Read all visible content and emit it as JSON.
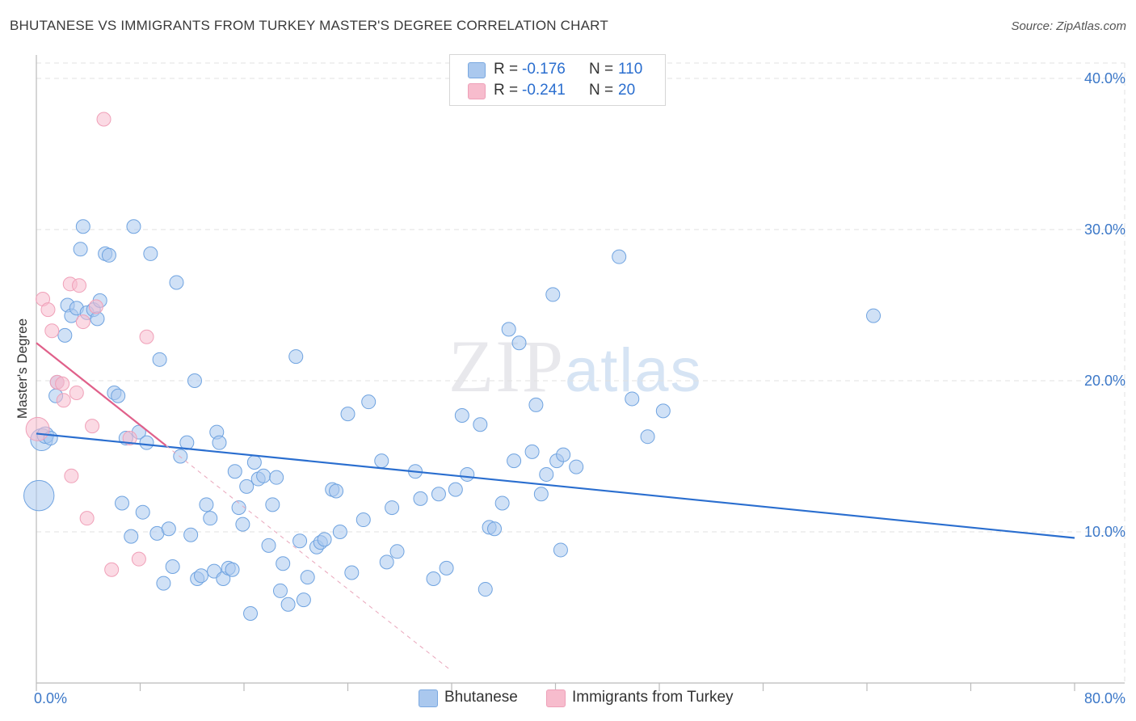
{
  "title": "BHUTANESE VS IMMIGRANTS FROM TURKEY MASTER'S DEGREE CORRELATION CHART",
  "source": "Source: ZipAtlas.com",
  "watermark": {
    "zip": "ZIP",
    "atlas": "atlas"
  },
  "legend": {
    "rows": [
      {
        "r_label": "R =",
        "r_value": "-0.176",
        "n_label": "N =",
        "n_value": "110",
        "color": "#aac8ee"
      },
      {
        "r_label": "R =",
        "r_value": "-0.241",
        "n_label": "N =",
        "n_value": "20",
        "color": "#f7bccd"
      }
    ]
  },
  "bottom_legend": [
    {
      "label": "Bhutanese",
      "color": "#aac8ee"
    },
    {
      "label": "Immigrants from Turkey",
      "color": "#f7bccd"
    }
  ],
  "chart_data": {
    "type": "scatter",
    "title": "BHUTANESE VS IMMIGRANTS FROM TURKEY MASTER'S DEGREE CORRELATION CHART",
    "xlabel": "",
    "ylabel": "Master's Degree",
    "xlim": [
      0,
      80
    ],
    "ylim": [
      0,
      40
    ],
    "x_tick_labels": [
      "0.0%",
      "80.0%"
    ],
    "y_tick_labels": [
      "10.0%",
      "20.0%",
      "30.0%",
      "40.0%"
    ],
    "y_ticks": [
      10,
      20,
      30,
      40
    ],
    "grid": true,
    "series": [
      {
        "name": "Bhutanese",
        "color": "#6fa3e0",
        "fill": "#aac8ee",
        "trend": {
          "x": [
            0,
            80
          ],
          "y": [
            16.5,
            9.6
          ],
          "color": "#2a6ecf"
        },
        "points": [
          [
            0.2,
            12.4,
            2.2
          ],
          [
            0.4,
            16.1,
            1.6
          ],
          [
            0.7,
            16.4,
            1.2
          ],
          [
            1.1,
            16.2,
            1
          ],
          [
            1.5,
            19.0,
            1
          ],
          [
            1.6,
            19.9,
            1
          ],
          [
            2.2,
            23.0,
            1
          ],
          [
            2.4,
            25.0,
            1
          ],
          [
            2.7,
            24.3,
            1
          ],
          [
            3.1,
            24.8,
            1
          ],
          [
            3.4,
            28.7,
            1
          ],
          [
            3.6,
            30.2,
            1
          ],
          [
            3.9,
            24.5,
            1
          ],
          [
            4.4,
            24.7,
            1
          ],
          [
            4.7,
            24.1,
            1
          ],
          [
            4.9,
            25.3,
            1
          ],
          [
            5.3,
            28.4,
            1
          ],
          [
            5.6,
            28.3,
            1
          ],
          [
            6.0,
            19.2,
            1
          ],
          [
            6.3,
            19.0,
            1
          ],
          [
            6.6,
            11.9,
            1
          ],
          [
            6.9,
            16.2,
            1
          ],
          [
            7.3,
            9.7,
            1
          ],
          [
            7.5,
            30.2,
            1
          ],
          [
            7.9,
            16.6,
            1
          ],
          [
            8.2,
            11.3,
            1
          ],
          [
            8.5,
            15.9,
            1
          ],
          [
            8.8,
            28.4,
            1
          ],
          [
            9.3,
            9.9,
            1
          ],
          [
            9.5,
            21.4,
            1
          ],
          [
            9.8,
            6.6,
            1
          ],
          [
            10.2,
            10.2,
            1
          ],
          [
            10.5,
            7.7,
            1
          ],
          [
            10.8,
            26.5,
            1
          ],
          [
            11.1,
            15.0,
            1
          ],
          [
            11.6,
            15.9,
            1
          ],
          [
            11.9,
            9.8,
            1
          ],
          [
            12.2,
            20.0,
            1
          ],
          [
            12.4,
            6.9,
            1
          ],
          [
            12.7,
            7.1,
            1
          ],
          [
            13.1,
            11.8,
            1
          ],
          [
            13.4,
            10.9,
            1
          ],
          [
            13.7,
            7.4,
            1
          ],
          [
            13.9,
            16.6,
            1
          ],
          [
            14.1,
            15.9,
            1
          ],
          [
            14.4,
            6.9,
            1
          ],
          [
            14.8,
            7.6,
            1
          ],
          [
            15.1,
            7.5,
            1
          ],
          [
            15.3,
            14.0,
            1
          ],
          [
            15.6,
            11.6,
            1
          ],
          [
            15.9,
            10.5,
            1
          ],
          [
            16.2,
            13.0,
            1
          ],
          [
            16.5,
            4.6,
            1
          ],
          [
            16.8,
            14.6,
            1
          ],
          [
            17.1,
            13.5,
            1
          ],
          [
            17.5,
            13.7,
            1
          ],
          [
            17.9,
            9.1,
            1
          ],
          [
            18.2,
            11.8,
            1
          ],
          [
            18.5,
            13.6,
            1
          ],
          [
            18.8,
            6.1,
            1
          ],
          [
            19.0,
            7.9,
            1
          ],
          [
            19.4,
            5.2,
            1
          ],
          [
            20.0,
            21.6,
            1
          ],
          [
            20.3,
            9.4,
            1
          ],
          [
            20.6,
            5.5,
            1
          ],
          [
            20.9,
            7.0,
            1
          ],
          [
            21.6,
            9.0,
            1
          ],
          [
            21.9,
            9.3,
            1
          ],
          [
            22.2,
            9.5,
            1
          ],
          [
            22.8,
            12.8,
            1
          ],
          [
            23.1,
            12.7,
            1
          ],
          [
            23.4,
            10.0,
            1
          ],
          [
            24.0,
            17.8,
            1
          ],
          [
            24.3,
            7.3,
            1
          ],
          [
            25.2,
            10.8,
            1
          ],
          [
            25.6,
            18.6,
            1
          ],
          [
            26.6,
            14.7,
            1
          ],
          [
            27.0,
            8.0,
            1
          ],
          [
            27.4,
            11.6,
            1
          ],
          [
            27.8,
            8.7,
            1
          ],
          [
            29.2,
            14.0,
            1
          ],
          [
            29.6,
            12.2,
            1
          ],
          [
            30.6,
            6.9,
            1
          ],
          [
            31.0,
            12.5,
            1
          ],
          [
            31.6,
            7.6,
            1
          ],
          [
            32.3,
            12.8,
            1
          ],
          [
            32.8,
            17.7,
            1
          ],
          [
            33.2,
            13.8,
            1
          ],
          [
            34.2,
            17.1,
            1
          ],
          [
            34.6,
            6.2,
            1
          ],
          [
            34.9,
            10.3,
            1
          ],
          [
            35.3,
            10.2,
            1
          ],
          [
            35.9,
            11.9,
            1
          ],
          [
            36.4,
            23.4,
            1
          ],
          [
            36.8,
            14.7,
            1
          ],
          [
            37.2,
            22.5,
            1
          ],
          [
            38.2,
            15.3,
            1
          ],
          [
            38.5,
            18.4,
            1
          ],
          [
            38.9,
            12.5,
            1
          ],
          [
            39.3,
            13.8,
            1
          ],
          [
            39.8,
            25.7,
            1
          ],
          [
            40.1,
            14.7,
            1
          ],
          [
            40.4,
            8.8,
            1
          ],
          [
            40.6,
            15.1,
            1
          ],
          [
            41.6,
            14.3,
            1
          ],
          [
            44.9,
            28.2,
            1
          ],
          [
            45.9,
            18.8,
            1
          ],
          [
            47.1,
            16.3,
            1
          ],
          [
            48.3,
            18.0,
            1
          ],
          [
            64.5,
            24.3,
            1
          ]
        ]
      },
      {
        "name": "Immigrants from Turkey",
        "color": "#f0a0b8",
        "fill": "#f7bccd",
        "trend": {
          "x": [
            0,
            10
          ],
          "y": [
            22.5,
            15.7
          ],
          "color": "#e0608a",
          "dashed_extension": {
            "x": [
              10,
              32
            ],
            "y": [
              15.7,
              0.8
            ]
          }
        },
        "points": [
          [
            0.1,
            16.8,
            1.7
          ],
          [
            0.5,
            25.4,
            1
          ],
          [
            0.9,
            24.7,
            1
          ],
          [
            1.2,
            23.3,
            1
          ],
          [
            1.6,
            19.9,
            1
          ],
          [
            2.0,
            19.8,
            1
          ],
          [
            2.1,
            18.7,
            1
          ],
          [
            2.6,
            26.4,
            1
          ],
          [
            2.7,
            13.7,
            1
          ],
          [
            3.1,
            19.2,
            1
          ],
          [
            3.3,
            26.3,
            1
          ],
          [
            3.6,
            23.9,
            1
          ],
          [
            3.9,
            10.9,
            1
          ],
          [
            4.3,
            17.0,
            1
          ],
          [
            4.6,
            24.9,
            1
          ],
          [
            5.2,
            37.3,
            1
          ],
          [
            5.8,
            7.5,
            1
          ],
          [
            7.2,
            16.2,
            1
          ],
          [
            7.9,
            8.2,
            1
          ],
          [
            8.5,
            22.9,
            1
          ]
        ]
      }
    ]
  }
}
